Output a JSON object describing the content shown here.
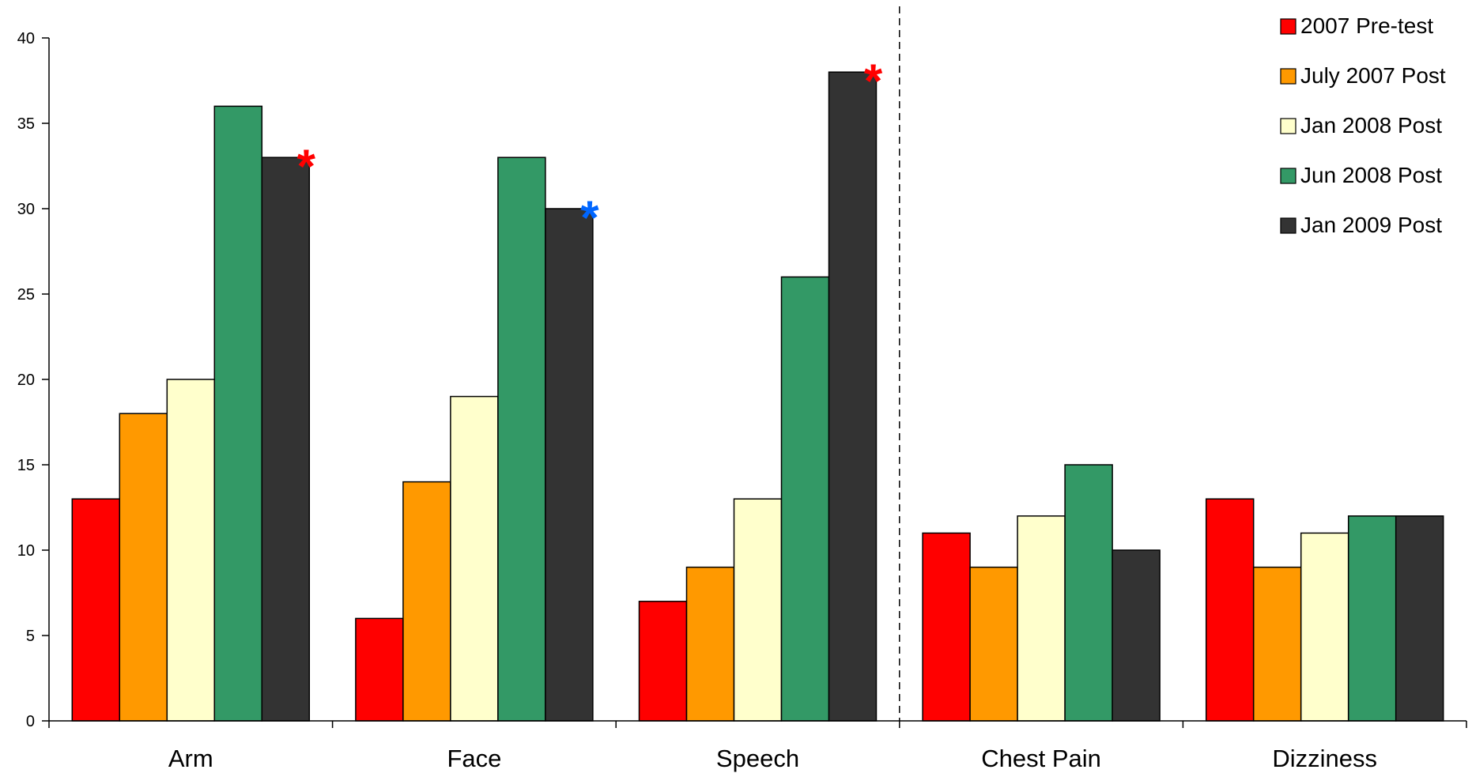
{
  "chart_data": {
    "type": "bar",
    "categories": [
      "Arm",
      "Face",
      "Speech",
      "Chest Pain",
      "Dizziness"
    ],
    "series": [
      {
        "name": "2007 Pre-test",
        "color": "#ff0000",
        "values": [
          13,
          6,
          7,
          11,
          13
        ]
      },
      {
        "name": "July 2007 Post",
        "color": "#ff9900",
        "values": [
          18,
          14,
          9,
          9,
          9
        ]
      },
      {
        "name": "Jan 2008 Post",
        "color": "#ffffcc",
        "values": [
          20,
          19,
          13,
          12,
          11
        ]
      },
      {
        "name": "Jun 2008 Post",
        "color": "#339966",
        "values": [
          36,
          33,
          26,
          15,
          12
        ]
      },
      {
        "name": "Jan 2009 Post",
        "color": "#333333",
        "values": [
          33,
          30,
          38,
          10,
          12
        ]
      }
    ],
    "ylim": [
      0,
      40
    ],
    "yticks": [
      0,
      5,
      10,
      15,
      20,
      25,
      30,
      35,
      40
    ],
    "title": "",
    "xlabel": "",
    "ylabel": "",
    "grid": false,
    "legend_position": "top-right",
    "separator_after_category": "Speech",
    "annotations": [
      {
        "text": "*",
        "category": "Arm",
        "series": "Jan 2009 Post",
        "color": "#ff0000"
      },
      {
        "text": "*",
        "category": "Face",
        "series": "Jan 2009 Post",
        "color": "#0066ff"
      },
      {
        "text": "*",
        "category": "Speech",
        "series": "Jan 2009 Post",
        "color": "#ff0000"
      }
    ]
  }
}
